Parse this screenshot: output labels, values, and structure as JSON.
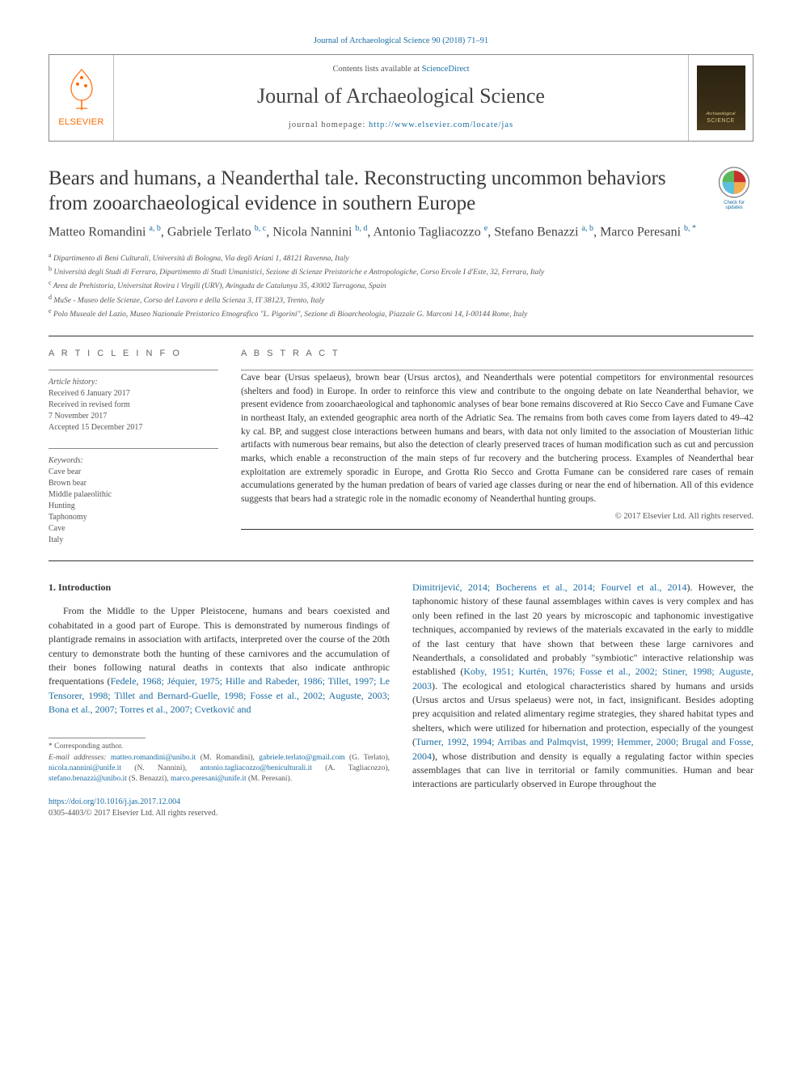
{
  "header": {
    "citation": "Journal of Archaeological Science 90 (2018) 71–91",
    "contents_prefix": "Contents lists available at ",
    "contents_link": "ScienceDirect",
    "journal_name": "Journal of Archaeological Science",
    "homepage_prefix": "journal homepage: ",
    "homepage_url": "http://www.elsevier.com/locate/jas",
    "publisher": "ELSEVIER"
  },
  "check_updates": {
    "label": "Check for updates"
  },
  "article": {
    "title": "Bears and humans, a Neanderthal tale. Reconstructing uncommon behaviors from zooarchaeological evidence in southern Europe",
    "authors_html": "Matteo Romandini <sup>a, b</sup>, Gabriele Terlato <sup>b, c</sup>, Nicola Nannini <sup>b, d</sup>, Antonio Tagliacozzo <sup>e</sup>, Stefano Benazzi <sup>a, b</sup>, Marco Peresani <sup>b, *</sup>",
    "affiliations": [
      {
        "sup": "a",
        "text": "Dipartimento di Beni Culturali, Università di Bologna, Via degli Ariani 1, 48121 Ravenna, Italy"
      },
      {
        "sup": "b",
        "text": "Università degli Studi di Ferrara, Dipartimento di Studi Umanistici, Sezione di Scienze Preistoriche e Antropologiche, Corso Ercole I d'Este, 32, Ferrara, Italy"
      },
      {
        "sup": "c",
        "text": "Area de Prehistoria, Universitat Rovira i Virgili (URV), Avinguda de Catalunya 35, 43002 Tarragona, Spain"
      },
      {
        "sup": "d",
        "text": "MuSe - Museo delle Scienze, Corso del Lavoro e della Scienza 3, IT 38123, Trento, Italy"
      },
      {
        "sup": "e",
        "text": "Polo Museale del Lazio, Museo Nazionale Preistorico Etnografico \"L. Pigorini\", Sezione di Bioarcheologia, Piazzale G. Marconi 14, I-00144 Rome, Italy"
      }
    ]
  },
  "info": {
    "heading": "A R T I C L E   I N F O",
    "history_label": "Article history:",
    "history": [
      "Received 6 January 2017",
      "Received in revised form",
      "7 November 2017",
      "Accepted 15 December 2017"
    ],
    "keywords_label": "Keywords:",
    "keywords": [
      "Cave bear",
      "Brown bear",
      "Middle palaeolithic",
      "Hunting",
      "Taphonomy",
      "Cave",
      "Italy"
    ]
  },
  "abstract": {
    "heading": "A B S T R A C T",
    "text": "Cave bear (Ursus spelaeus), brown bear (Ursus arctos), and Neanderthals were potential competitors for environmental resources (shelters and food) in Europe. In order to reinforce this view and contribute to the ongoing debate on late Neanderthal behavior, we present evidence from zooarchaeological and taphonomic analyses of bear bone remains discovered at Rio Secco Cave and Fumane Cave in northeast Italy, an extended geographic area north of the Adriatic Sea. The remains from both caves come from layers dated to 49–42 ky cal. BP, and suggest close interactions between humans and bears, with data not only limited to the association of Mousterian lithic artifacts with numerous bear remains, but also the detection of clearly preserved traces of human modification such as cut and percussion marks, which enable a reconstruction of the main steps of fur recovery and the butchering process. Examples of Neanderthal bear exploitation are extremely sporadic in Europe, and Grotta Rio Secco and Grotta Fumane can be considered rare cases of remain accumulations generated by the human predation of bears of varied age classes during or near the end of hibernation. All of this evidence suggests that bears had a strategic role in the nomadic economy of Neanderthal hunting groups.",
    "copyright": "© 2017 Elsevier Ltd. All rights reserved."
  },
  "body": {
    "section_heading": "1. Introduction",
    "col1_text": "From the Middle to the Upper Pleistocene, humans and bears coexisted and cohabitated in a good part of Europe. This is demonstrated by numerous findings of plantigrade remains in association with artifacts, interpreted over the course of the 20th century to demonstrate both the hunting of these carnivores and the accumulation of their bones following natural deaths in contexts that also indicate anthropic frequentations (",
    "col1_ref": "Fedele, 1968; Jéquier, 1975; Hille and Rabeder, 1986; Tillet, 1997; Le Tensorer, 1998; Tillet and Bernard-Guelle, 1998; Fosse et al., 2002; Auguste, 2003; Bona et al., 2007; Torres et al., 2007; Cvetković and",
    "col2_ref_start": "Dimitrijević, 2014; Bocherens et al., 2014; Fourvel et al., 2014",
    "col2_text": "). However, the taphonomic history of these faunal assemblages within caves is very complex and has only been refined in the last 20 years by microscopic and taphonomic investigative techniques, accompanied by reviews of the materials excavated in the early to middle of the last century that have shown that between these large carnivores and Neanderthals, a consolidated and probably \"symbiotic\" interactive relationship was established (",
    "col2_ref2": "Koby, 1951; Kurtén, 1976; Fosse et al., 2002; Stiner, 1998; Auguste, 2003",
    "col2_text2": "). The ecological and etological characteristics shared by humans and ursids (Ursus arctos and Ursus spelaeus) were not, in fact, insignificant. Besides adopting prey acquisition and related alimentary regime strategies, they shared habitat types and shelters, which were utilized for hibernation and protection, especially of the youngest (",
    "col2_ref3": "Turner, 1992, 1994; Arribas and Palmqvist, 1999; Hemmer, 2000; Brugal and Fosse, 2004",
    "col2_text3": "), whose distribution and density is equally a regulating factor within species assemblages that can live in territorial or family communities. Human and bear interactions are particularly observed in Europe throughout the"
  },
  "footnote": {
    "corresponding": "* Corresponding author.",
    "emails_label": "E-mail addresses: ",
    "emails": [
      {
        "addr": "matteo.romandini@unibo.it",
        "name": "(M. Romandini)"
      },
      {
        "addr": "gabriele.terlato@gmail.com",
        "name": "(G. Terlato)"
      },
      {
        "addr": "nicola.nannini@unife.it",
        "name": "(N. Nannini)"
      },
      {
        "addr": "antonio.tagliacozzo@beniculturali.it",
        "name": "(A. Tagliacozzo)"
      },
      {
        "addr": "stefano.benazzi@unibo.it",
        "name": "(S. Benazzi)"
      },
      {
        "addr": "marco.peresani@unife.it",
        "name": "(M. Peresani)"
      }
    ]
  },
  "bottom": {
    "doi": "https://doi.org/10.1016/j.jas.2017.12.004",
    "issn_copyright": "0305-4403/© 2017 Elsevier Ltd. All rights reserved."
  },
  "colors": {
    "link": "#1a6ca3",
    "text": "#333333",
    "elsevier_orange": "#ff6a00"
  }
}
